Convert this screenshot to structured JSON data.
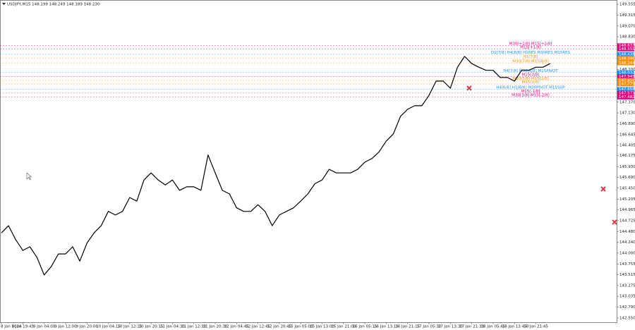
{
  "chart_data": {
    "type": "line",
    "title": "USDJPY,M15 148.199 148.249 148.189 148.230",
    "color": "#000000",
    "categories": [
      "8 Jan 2024",
      null,
      null,
      "8 Jan 19:45",
      null,
      null,
      "9 Jan 04:00",
      null,
      null,
      "9 Jan 12:00",
      null,
      null,
      "9 Jan 20:00",
      null,
      null,
      "10 Jan 04:15",
      null,
      null,
      "10 Jan 12:15",
      null,
      null,
      "10 Jan 20:15",
      null,
      null,
      "11 Jan 04:30",
      null,
      null,
      "11 Jan 12:30",
      null,
      null,
      "11 Jan 20:30",
      null,
      null,
      "12 Jan 04:45",
      null,
      null,
      "12 Jan 12:45",
      null,
      null,
      "12 Jan 20:45",
      null,
      null,
      "15 Jan 05:00",
      null,
      null,
      "15 Jan 13:00",
      null,
      null,
      "15 Jan 21:00",
      null,
      null,
      "16 Jan 05:15",
      null,
      null,
      "16 Jan 13:15",
      null,
      null,
      "16 Jan 21:15",
      null,
      null,
      "17 Jan 05:30",
      null,
      null,
      "17 Jan 13:30",
      null,
      null,
      "17 Jan 21:30",
      null,
      null,
      "18 Jan 05:45",
      null,
      null,
      "18 Jan 13:45",
      null,
      null,
      "18 Jan 21:45",
      null,
      null
    ],
    "values": [
      144.45,
      144.61,
      144.3,
      144.06,
      144.14,
      143.9,
      143.51,
      143.7,
      143.98,
      143.98,
      144.14,
      143.82,
      144.22,
      144.45,
      144.61,
      144.93,
      144.85,
      144.93,
      145.24,
      145.16,
      145.63,
      145.79,
      145.63,
      145.52,
      145.63,
      145.4,
      145.48,
      145.48,
      145.4,
      146.19,
      145.79,
      145.4,
      145.32,
      145.01,
      144.93,
      144.93,
      145.08,
      144.93,
      144.61,
      144.85,
      144.93,
      145.01,
      145.16,
      145.32,
      145.55,
      145.63,
      145.87,
      145.79,
      145.79,
      145.79,
      145.87,
      146.03,
      146.11,
      146.26,
      146.5,
      146.66,
      147.05,
      147.21,
      147.29,
      147.29,
      147.52,
      147.84,
      147.84,
      147.68,
      148.15,
      148.39,
      148.23,
      148.15,
      148.08,
      148.08,
      147.92,
      147.92,
      147.84,
      148.08,
      148.08,
      148.15,
      148.15,
      148.23
    ],
    "ylim": [
      142.455,
      149.65
    ],
    "yticks": [
      {
        "value": 142.55,
        "label": "142.550"
      },
      {
        "value": 142.79,
        "label": "142.790"
      },
      143.035,
      143.275,
      143.515,
      143.755,
      {
        "value": 144,
        "label": "144.000"
      },
      {
        "value": 144.24,
        "label": "144.240"
      },
      {
        "value": 144.48,
        "label": "144.480"
      },
      144.725,
      144.965,
      145.205,
      {
        "value": 145.45,
        "label": "145.450"
      },
      {
        "value": 145.69,
        "label": "145.690"
      },
      {
        "value": 145.93,
        "label": "145.930"
      },
      146.175,
      146.405,
      146.645,
      {
        "value": 146.89,
        "label": "146.890"
      },
      {
        "value": 147.13,
        "label": "147.130"
      },
      {
        "value": 147.37,
        "label": "147.370"
      },
      147.615,
      147.855,
      {
        "value": 148.1,
        "label": "148.100"
      },
      148.345,
      {
        "value": 148.59,
        "label": "148.590"
      },
      {
        "value": 148.83,
        "label": "148.830"
      },
      {
        "value": 149.07,
        "label": "149.070"
      },
      149.315,
      149.555
    ],
    "levels": [
      {
        "price": 148.633,
        "label": "M30[+1/8] M15[+2/8]",
        "color": "#e6007e"
      },
      {
        "price": 148.555,
        "label": "M15[+1/8]",
        "color": "#e6007e"
      },
      {
        "price": 148.438,
        "label": "D1[7/8] H4[8/8] H1RES M30RES M15RES",
        "color": "#1e90ff"
      },
      {
        "price": 148.346,
        "label": "H1[7/8]",
        "color": "#ff8c00"
      },
      {
        "price": 148.244,
        "label": "M30[7/8] M15[8/8]",
        "color": "#ff8c00"
      },
      {
        "price": 148.032,
        "label": "H4[7/8] M30[6/8] M15PIVOT",
        "color": "#1e90ff"
      },
      {
        "price": 147.945,
        "label": "M15[3/8]",
        "color": "#e6007e"
      },
      {
        "price": 147.855,
        "label": "M30[5/8] M15[2/8]",
        "color": "#ff8c00"
      },
      {
        "price": 147.775,
        "label": "M15[1/8]",
        "color": "#ff8c00"
      },
      {
        "price": 147.656,
        "label": "H4[6/8] H1[6/8] M30PIVOT M15SUP",
        "color": "#1e90ff"
      },
      {
        "price": 147.573,
        "label": "M15[-1/8]",
        "color": "#e6007e"
      },
      {
        "price": 147.482,
        "label": "M30[3/8] M15[-2/8]",
        "color": "#e6007e"
      }
    ]
  }
}
